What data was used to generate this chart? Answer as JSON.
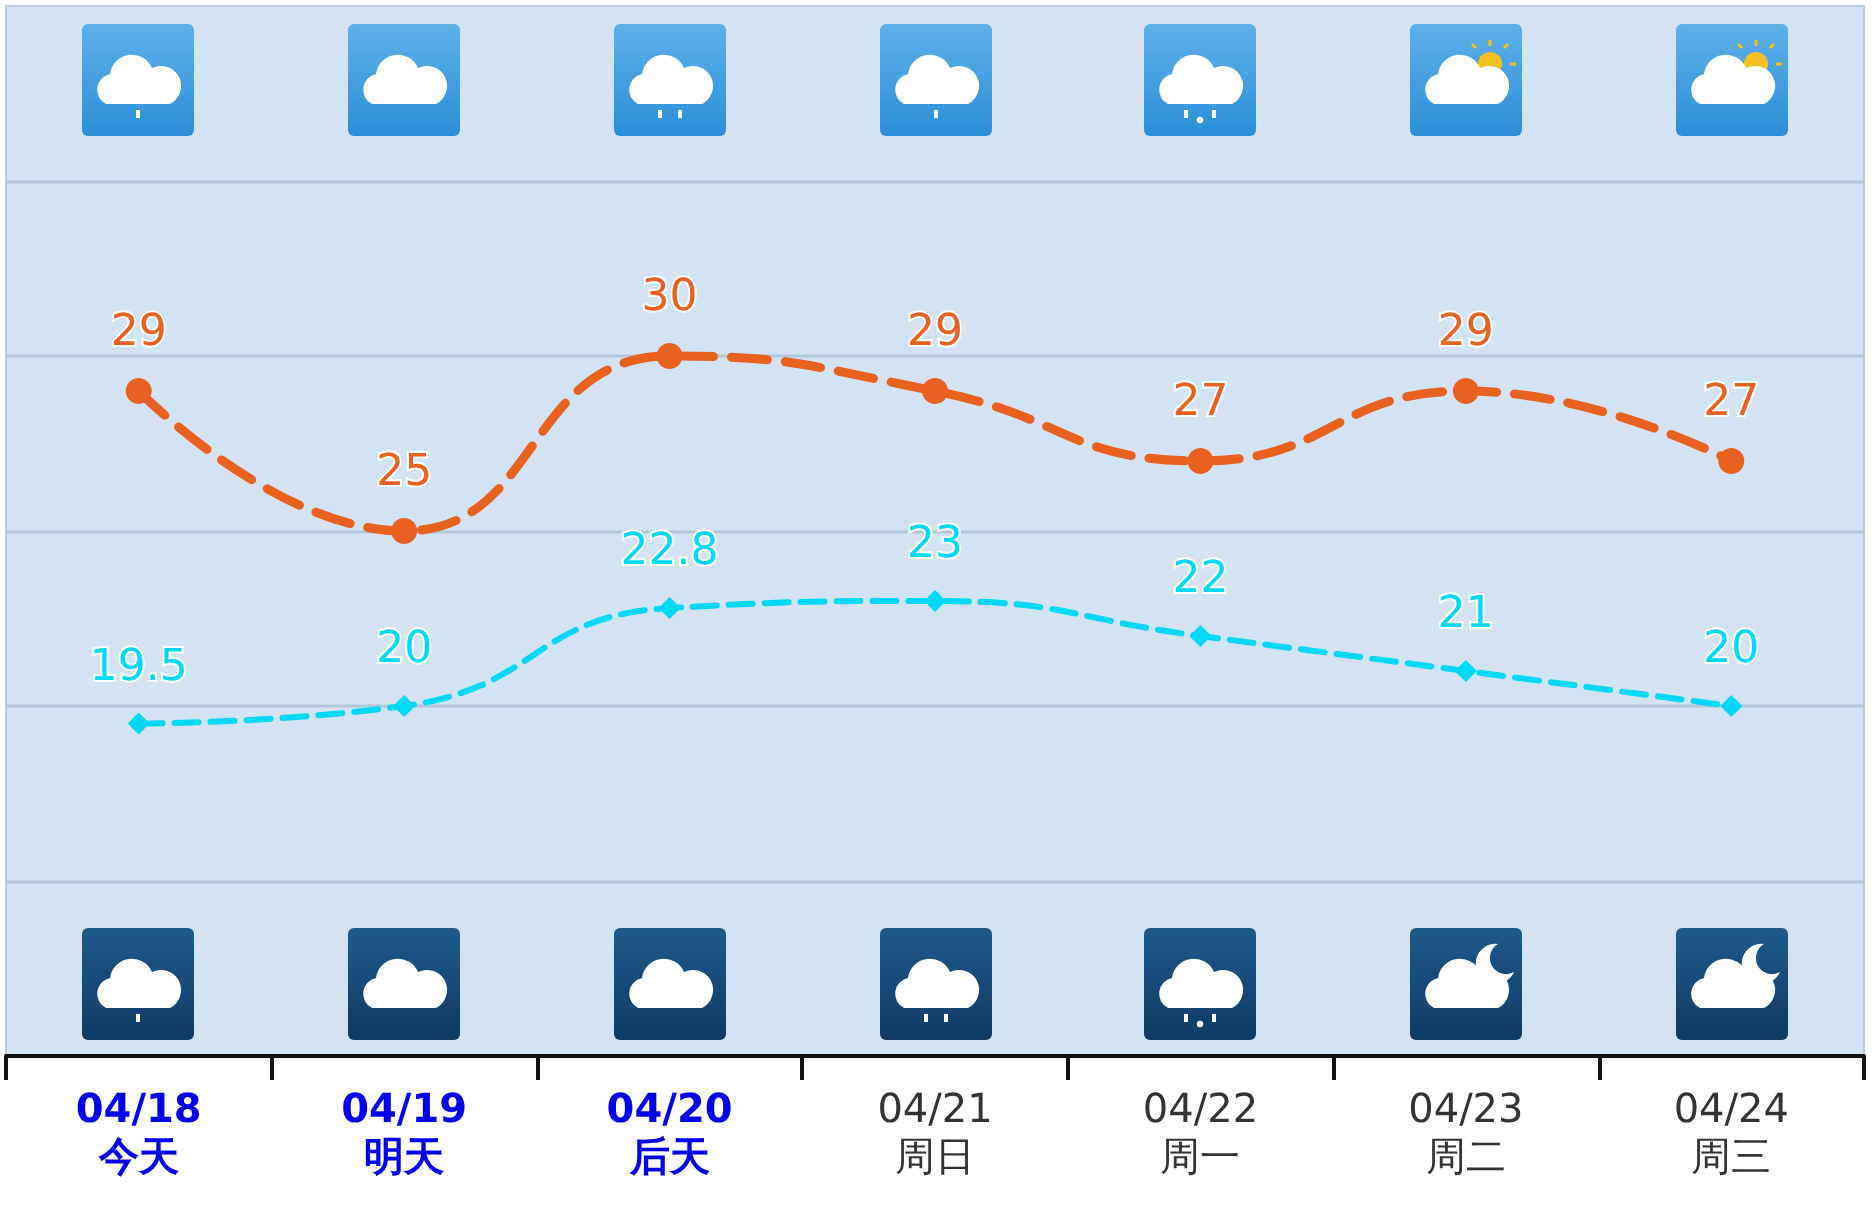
{
  "chart_data": {
    "type": "line",
    "categories": [
      "04/18\n今天",
      "04/19\n明天",
      "04/20\n后天",
      "04/21\n周日",
      "04/22\n周一",
      "04/23\n周二",
      "04/24\n周三"
    ],
    "series": [
      {
        "color": "#e8611e",
        "marker": "circle",
        "line_style": "dashed",
        "values": [
          29,
          25,
          30,
          29,
          27,
          29,
          27
        ]
      },
      {
        "color": "#00d8f8",
        "marker": "diamond",
        "line_style": "dashed",
        "values": [
          19.5,
          20,
          22.8,
          23,
          22,
          21,
          20
        ]
      }
    ],
    "ylim": [
      10,
      40
    ],
    "yticks": [
      {
        "value": 15,
        "label": null
      },
      {
        "value": 20,
        "label": null
      },
      {
        "value": 25,
        "label": null
      },
      {
        "value": 30,
        "label": null
      },
      {
        "value": 35,
        "label": null
      }
    ],
    "tick_labels": "x",
    "grid": "y",
    "data_labels": true
  }
}
